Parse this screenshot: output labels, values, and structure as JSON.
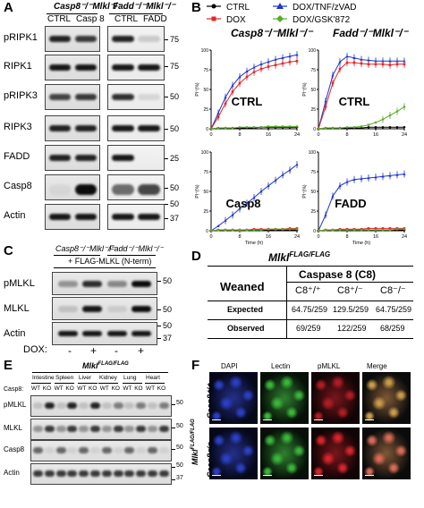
{
  "panelA": {
    "letter": "A",
    "group1_title": "Casp8⁻/⁻Mlkl⁻/⁻",
    "group2_title": "Fadd⁻/⁻Mlkl⁻/⁻",
    "lanes1": [
      "CTRL",
      "Casp 8"
    ],
    "lanes2": [
      "CTRL",
      "FADD"
    ],
    "rows": [
      "pRIPK1",
      "RIPK1",
      "pRIPK3",
      "RIPK3",
      "FADD",
      "Casp8",
      "Actin"
    ],
    "markers": [
      "75",
      "75",
      "50",
      "50",
      "25",
      "50",
      "50",
      "37"
    ]
  },
  "panelB": {
    "letter": "B",
    "legend": [
      "CTRL",
      "DOX/TNF/zVAD",
      "DOX",
      "DOX/GSK'872"
    ],
    "legend_colors": [
      "#000000",
      "#1f35c9",
      "#e0282a",
      "#5aaa2a"
    ],
    "col1_title": "Casp8⁻/⁻Mlkl⁻/⁻",
    "col2_title": "Fadd⁻/⁻Mlkl⁻/⁻",
    "subplot_labels": [
      "CTRL",
      "CTRL",
      "Casp8",
      "FADD"
    ],
    "ylabel": "PI⁺(%)",
    "xlabel": "Time (h)",
    "yticks": [
      "0",
      "25",
      "50",
      "75",
      "100"
    ],
    "xticks": [
      "0",
      "8",
      "16",
      "24"
    ]
  },
  "chart_data": [
    {
      "type": "line",
      "title": "CTRL",
      "xlabel": "Time (h)",
      "ylabel": "PI⁺(%)",
      "ylim": [
        0,
        100
      ],
      "x": [
        0,
        2,
        4,
        6,
        8,
        10,
        12,
        14,
        16,
        18,
        20,
        22,
        24
      ],
      "series": [
        {
          "name": "CTRL",
          "color": "#000000",
          "values": [
            0,
            1,
            1,
            1,
            1,
            1,
            1,
            2,
            2,
            2,
            2,
            2,
            2
          ]
        },
        {
          "name": "DOX/TNF/zVAD",
          "color": "#1f35c9",
          "values": [
            0,
            20,
            40,
            55,
            66,
            73,
            78,
            82,
            85,
            88,
            90,
            92,
            94
          ]
        },
        {
          "name": "DOX",
          "color": "#e0282a",
          "values": [
            0,
            15,
            32,
            47,
            58,
            66,
            72,
            76,
            79,
            81,
            83,
            85,
            86
          ]
        },
        {
          "name": "DOX/GSK'872",
          "color": "#5aaa2a",
          "values": [
            0,
            1,
            1,
            1,
            2,
            2,
            2,
            2,
            3,
            3,
            3,
            3,
            3
          ]
        }
      ]
    },
    {
      "type": "line",
      "title": "CTRL",
      "xlabel": "Time (h)",
      "ylim": [
        0,
        100
      ],
      "x": [
        0,
        2,
        4,
        6,
        8,
        10,
        12,
        14,
        16,
        18,
        20,
        22,
        24
      ],
      "series": [
        {
          "name": "CTRL",
          "color": "#000000",
          "values": [
            0,
            1,
            1,
            1,
            1,
            1,
            1,
            2,
            2,
            2,
            2,
            2,
            2
          ]
        },
        {
          "name": "DOX/TNF/zVAD",
          "color": "#1f35c9",
          "values": [
            0,
            35,
            68,
            85,
            92,
            90,
            88,
            87,
            86,
            86,
            86,
            86,
            86
          ]
        },
        {
          "name": "DOX",
          "color": "#e0282a",
          "values": [
            0,
            28,
            58,
            76,
            84,
            84,
            83,
            82,
            82,
            82,
            81,
            82,
            82
          ]
        },
        {
          "name": "DOX/GSK'872",
          "color": "#5aaa2a",
          "values": [
            0,
            1,
            1,
            1,
            2,
            2,
            3,
            5,
            8,
            12,
            17,
            22,
            28
          ]
        }
      ]
    },
    {
      "type": "line",
      "title": "Casp8",
      "xlabel": "Time (h)",
      "ylabel": "PI⁺(%)",
      "ylim": [
        0,
        100
      ],
      "x": [
        0,
        2,
        4,
        6,
        8,
        10,
        12,
        14,
        16,
        18,
        20,
        22,
        24
      ],
      "series": [
        {
          "name": "CTRL",
          "color": "#000000",
          "values": [
            0,
            1,
            1,
            1,
            1,
            1,
            1,
            1,
            1,
            1,
            1,
            1,
            1
          ]
        },
        {
          "name": "DOX/TNF/zVAD",
          "color": "#1f35c9",
          "values": [
            0,
            6,
            13,
            20,
            28,
            35,
            42,
            50,
            57,
            64,
            71,
            77,
            84
          ]
        },
        {
          "name": "DOX",
          "color": "#e0282a",
          "values": [
            0,
            1,
            1,
            1,
            1,
            1,
            2,
            2,
            2,
            2,
            2,
            3,
            3
          ]
        },
        {
          "name": "DOX/GSK'872",
          "color": "#5aaa2a",
          "values": [
            0,
            1,
            1,
            1,
            1,
            1,
            1,
            1,
            2,
            2,
            2,
            2,
            2
          ]
        }
      ]
    },
    {
      "type": "line",
      "title": "FADD",
      "xlabel": "Time (h)",
      "ylim": [
        0,
        100
      ],
      "x": [
        0,
        2,
        4,
        6,
        8,
        10,
        12,
        14,
        16,
        18,
        20,
        22,
        24
      ],
      "series": [
        {
          "name": "CTRL",
          "color": "#000000",
          "values": [
            0,
            1,
            1,
            1,
            1,
            1,
            1,
            1,
            1,
            1,
            1,
            1,
            1
          ]
        },
        {
          "name": "DOX/TNF/zVAD",
          "color": "#1f35c9",
          "values": [
            0,
            20,
            44,
            57,
            62,
            65,
            66,
            67,
            68,
            69,
            70,
            71,
            72
          ]
        },
        {
          "name": "DOX",
          "color": "#e0282a",
          "values": [
            0,
            1,
            1,
            2,
            2,
            2,
            2,
            3,
            3,
            3,
            3,
            3,
            3
          ]
        },
        {
          "name": "DOX/GSK'872",
          "color": "#5aaa2a",
          "values": [
            0,
            1,
            1,
            1,
            1,
            1,
            1,
            1,
            1,
            1,
            1,
            2,
            2
          ]
        }
      ]
    }
  ],
  "panelC": {
    "letter": "C",
    "group1_title": "Casp8⁻/⁻Mlkl⁻/⁻",
    "group2_title": "Fadd⁻/⁻Mlkl⁻/⁻",
    "construct": "+ FLAG-MLKL (N-term)",
    "rows": [
      "pMLKL",
      "MLKL",
      "Actin"
    ],
    "markers": [
      "50",
      "50",
      "50",
      "37"
    ],
    "dox_label": "DOX:",
    "dox_values": [
      "-",
      "+",
      "-",
      "+"
    ]
  },
  "panelD": {
    "letter": "D",
    "title": "Mlkl",
    "title_sup": "FLAG/FLAG",
    "weaned": "Weaned",
    "caspase_header": "Caspase 8 (C8)",
    "genotypes": [
      "C8⁺/⁺",
      "C8⁺/⁻",
      "C8⁻/⁻"
    ],
    "rows": [
      {
        "label": "Expected",
        "values": [
          "64.75/259",
          "129.5/259",
          "64.75/259"
        ]
      },
      {
        "label": "Observed",
        "values": [
          "69/259",
          "122/259",
          "68/259"
        ]
      }
    ]
  },
  "panelE": {
    "letter": "E",
    "title": "Mlkl",
    "title_sup": "FLAG/FLAG",
    "tissues": [
      "Intestine",
      "Spleen",
      "Liver",
      "Kidney",
      "Lung",
      "Heart"
    ],
    "casp8_label": "Casp8:",
    "genotype_labels": [
      "WT",
      "KO",
      "WT",
      "KO",
      "WT",
      "KO",
      "WT",
      "KO",
      "WT",
      "KO",
      "WT",
      "KO"
    ],
    "rows": [
      "pMLKL",
      "MLKL",
      "Casp8",
      "Actin"
    ],
    "markers": [
      "50",
      "50",
      "50",
      "50",
      "37"
    ]
  },
  "panelF": {
    "letter": "F",
    "columns": [
      "DAPI",
      "Lectin",
      "pMLKL",
      "Merge"
    ],
    "side_label": "Mlkl",
    "side_label_sup": "FLAG/FLAG",
    "row_labels": [
      "Casp8⁺/⁺",
      "Casp8⁻/⁻"
    ]
  }
}
